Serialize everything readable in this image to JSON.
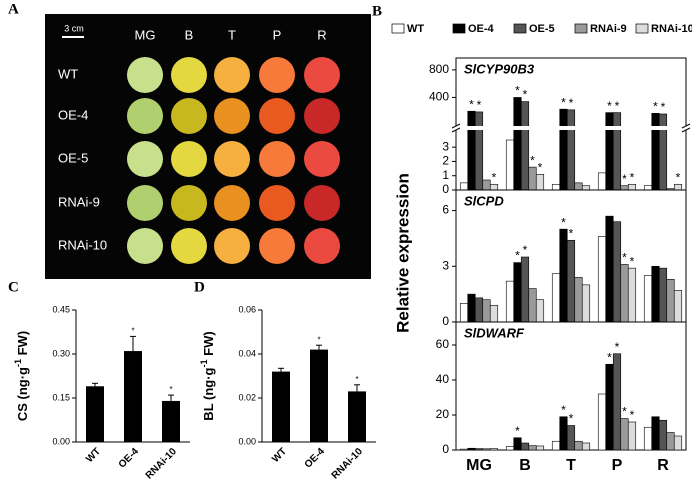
{
  "panel_a": {
    "label": "A",
    "scale": "3 cm",
    "columns": [
      "MG",
      "B",
      "T",
      "P",
      "R"
    ],
    "rows": [
      "WT",
      "OE-4",
      "OE-5",
      "RNAi-9",
      "RNAi-10"
    ]
  },
  "chart_data": [
    {
      "type": "grouped-bar",
      "panel_label": "B",
      "ylabel": "Relative expression",
      "marker": "*",
      "categories": [
        "MG",
        "B",
        "T",
        "P",
        "R"
      ],
      "series": [
        {
          "name": "WT",
          "color": "#ffffff"
        },
        {
          "name": "OE-4",
          "color": "#000000"
        },
        {
          "name": "OE-5",
          "color": "#555555"
        },
        {
          "name": "RNAi-9",
          "color": "#9a9a9a"
        },
        {
          "name": "RNAi-10",
          "color": "#dcdcdc"
        }
      ],
      "subplots": [
        {
          "title": "SlCYP90B3",
          "ylim": [
            0,
            4.2
          ],
          "yticks": [
            0,
            1,
            2,
            3
          ],
          "upper_ylim": [
            0,
            900
          ],
          "upper_yticks": [
            400,
            800
          ],
          "values": [
            [
              0.5,
              3.5,
              0.4,
              1.2,
              0.3
            ],
            [
              200,
              400,
              230,
              180,
              170
            ],
            [
              190,
              340,
              220,
              180,
              160
            ],
            [
              0.7,
              1.6,
              0.5,
              0.3,
              0.1
            ],
            [
              0.4,
              1.1,
              0.3,
              0.4,
              0.4
            ]
          ],
          "significant": [
            [
              false,
              false,
              false,
              false,
              false
            ],
            [
              true,
              true,
              true,
              true,
              true
            ],
            [
              true,
              true,
              true,
              true,
              true
            ],
            [
              false,
              true,
              false,
              true,
              false
            ],
            [
              true,
              true,
              false,
              true,
              true
            ]
          ]
        },
        {
          "title": "SlCPD",
          "ylim": [
            0,
            7
          ],
          "yticks": [
            0,
            3,
            6
          ],
          "values": [
            [
              1.0,
              2.2,
              2.6,
              4.6,
              2.5
            ],
            [
              1.5,
              3.2,
              5.0,
              5.7,
              3.0
            ],
            [
              1.3,
              3.5,
              4.4,
              5.4,
              2.9
            ],
            [
              1.2,
              1.8,
              2.4,
              3.1,
              2.3
            ],
            [
              0.9,
              1.2,
              2.0,
              2.9,
              1.7
            ]
          ],
          "significant": [
            [
              false,
              false,
              false,
              false,
              false
            ],
            [
              false,
              true,
              true,
              false,
              false
            ],
            [
              false,
              true,
              true,
              false,
              false
            ],
            [
              false,
              false,
              false,
              true,
              false
            ],
            [
              false,
              false,
              false,
              true,
              false
            ]
          ]
        },
        {
          "title": "SlDWARF",
          "ylim": [
            0,
            72
          ],
          "yticks": [
            0,
            20,
            40,
            60
          ],
          "values": [
            [
              0.5,
              2,
              5,
              32,
              13
            ],
            [
              1,
              7,
              19,
              49,
              19
            ],
            [
              0.8,
              4,
              14,
              55,
              17
            ],
            [
              0.7,
              2.5,
              5,
              18,
              10
            ],
            [
              0.8,
              2.3,
              4,
              16,
              8
            ]
          ],
          "significant": [
            [
              false,
              false,
              false,
              false,
              false
            ],
            [
              false,
              true,
              true,
              true,
              false
            ],
            [
              false,
              false,
              true,
              true,
              false
            ],
            [
              false,
              false,
              false,
              true,
              false
            ],
            [
              false,
              false,
              false,
              true,
              false
            ]
          ]
        }
      ]
    },
    {
      "type": "bar",
      "panel_label": "C",
      "ylabel": [
        "CS (ng·g",
        "-1",
        " FW)"
      ],
      "marker": "*",
      "color": "#000000",
      "categories": [
        "WT",
        "OE-4",
        "RNAi-10"
      ],
      "values": [
        0.19,
        0.31,
        0.14
      ],
      "errors": [
        0.01,
        0.05,
        0.02
      ],
      "significant": [
        false,
        true,
        true
      ],
      "ylim": [
        0,
        0.45
      ],
      "yticks": [
        {
          "value": 0,
          "label": "0.00"
        },
        0.15,
        {
          "value": 0.3,
          "label": "0.30"
        },
        0.45
      ]
    },
    {
      "type": "bar",
      "panel_label": "D",
      "ylabel": [
        "BL (ng·g",
        "-1",
        " FW)"
      ],
      "marker": "*",
      "color": "#000000",
      "categories": [
        "WT",
        "OE-4",
        "RNAi-10"
      ],
      "values": [
        0.032,
        0.042,
        0.023
      ],
      "errors": [
        0.0015,
        0.002,
        0.003
      ],
      "significant": [
        false,
        true,
        true
      ],
      "ylim": [
        0,
        0.06
      ],
      "yticks": [
        {
          "value": 0,
          "label": "0.00"
        },
        0.02,
        0.04,
        0.06
      ]
    }
  ]
}
